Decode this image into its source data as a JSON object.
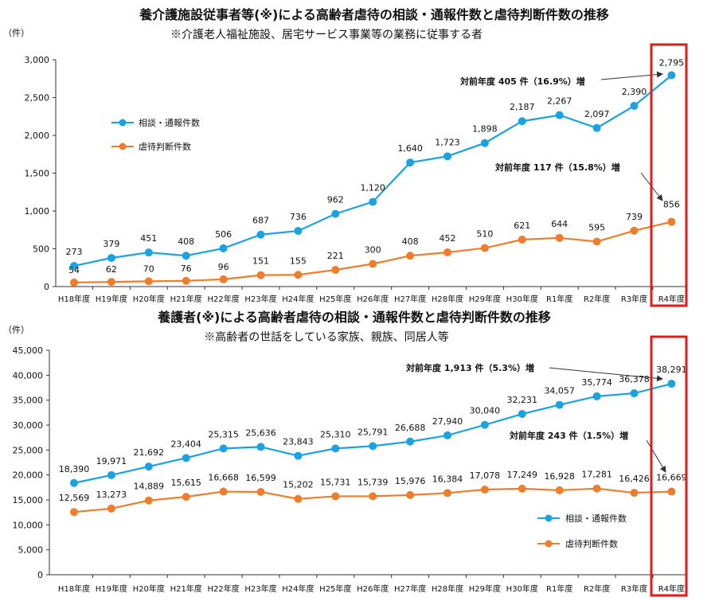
{
  "colors": {
    "consult": "#1aa3e0",
    "abuse": "#ef7d2b",
    "highlight": "#e01b1b",
    "axis": "#333333"
  },
  "chart_data": [
    {
      "type": "line",
      "title": "養介護施設従事者等(※)による高齢者虐待の相談・通報件数と虐待判断件数の推移",
      "subtitle": "※介護老人福祉施設、居宅サービス事業等の業務に従事する者",
      "unit": "（件）",
      "ylim": [
        0,
        3000
      ],
      "yticks": [
        "0",
        "500",
        "1,000",
        "1,500",
        "2,000",
        "2,500",
        "3,000"
      ],
      "ytick_values": [
        0,
        500,
        1000,
        1500,
        2000,
        2500,
        3000
      ],
      "categories": [
        "H18年度",
        "H19年度",
        "H20年度",
        "H21年度",
        "H22年度",
        "H23年度",
        "H24年度",
        "H25年度",
        "H26年度",
        "H27年度",
        "H28年度",
        "H29年度",
        "H30年度",
        "R1年度",
        "R2年度",
        "R3年度",
        "R4年度"
      ],
      "series": [
        {
          "name": "相談・通報件数",
          "values": [
            273,
            379,
            451,
            408,
            506,
            687,
            736,
            962,
            1120,
            1640,
            1723,
            1898,
            2187,
            2267,
            2097,
            2390,
            2795
          ],
          "labels": [
            "273",
            "379",
            "451",
            "408",
            "506",
            "687",
            "736",
            "962",
            "1,120",
            "1,640",
            "1,723",
            "1,898",
            "2,187",
            "2,267",
            "2,097",
            "2,390",
            "2,795"
          ]
        },
        {
          "name": "虐待判断件数",
          "values": [
            54,
            62,
            70,
            76,
            96,
            151,
            155,
            221,
            300,
            408,
            452,
            510,
            621,
            644,
            595,
            739,
            856
          ],
          "labels": [
            "54",
            "62",
            "70",
            "76",
            "96",
            "151",
            "155",
            "221",
            "300",
            "408",
            "452",
            "510",
            "621",
            "644",
            "595",
            "739",
            "856"
          ]
        }
      ],
      "annotations": [
        "対前年度 405 件（16.9%）増",
        "対前年度 117 件（15.8%）増"
      ],
      "legend": "top-left",
      "highlight_category": "R4年度"
    },
    {
      "type": "line",
      "title": "養護者(※)による高齢者虐待の相談・通報件数と虐待判断件数の推移",
      "subtitle": "※高齢者の世話をしている家族、親族、同居人等",
      "unit": "（件）",
      "ylim": [
        0,
        45000
      ],
      "yticks": [
        "0",
        "5,000",
        "10,000",
        "15,000",
        "20,000",
        "25,000",
        "30,000",
        "35,000",
        "40,000",
        "45,000"
      ],
      "ytick_values": [
        0,
        5000,
        10000,
        15000,
        20000,
        25000,
        30000,
        35000,
        40000,
        45000
      ],
      "categories": [
        "H18年度",
        "H19年度",
        "H20年度",
        "H21年度",
        "H22年度",
        "H23年度",
        "H24年度",
        "H25年度",
        "H26年度",
        "H27年度",
        "H28年度",
        "H29年度",
        "H30年度",
        "R1年度",
        "R2年度",
        "R3年度",
        "R4年度"
      ],
      "series": [
        {
          "name": "相談・通報件数",
          "values": [
            18390,
            19971,
            21692,
            23404,
            25315,
            25636,
            23843,
            25310,
            25791,
            26688,
            27940,
            30040,
            32231,
            34057,
            35774,
            36378,
            38291
          ],
          "labels": [
            "18,390",
            "19,971",
            "21,692",
            "23,404",
            "25,315",
            "25,636",
            "23,843",
            "25,310",
            "25,791",
            "26,688",
            "27,940",
            "30,040",
            "32,231",
            "34,057",
            "35,774",
            "36,378",
            "38,291"
          ]
        },
        {
          "name": "虐待判断件数",
          "values": [
            12569,
            13273,
            14889,
            15615,
            16668,
            16599,
            15202,
            15731,
            15739,
            15976,
            16384,
            17078,
            17249,
            16928,
            17281,
            16426,
            16669
          ],
          "labels": [
            "12,569",
            "13,273",
            "14,889",
            "15,615",
            "16,668",
            "16,599",
            "15,202",
            "15,731",
            "15,739",
            "15,976",
            "16,384",
            "17,078",
            "17,249",
            "16,928",
            "17,281",
            "16,426",
            "16,669"
          ]
        }
      ],
      "annotations": [
        "対前年度 1,913 件（5.3%）増",
        "対前年度 243 件（1.5%）増"
      ],
      "legend": "bottom-right",
      "highlight_category": "R4年度"
    }
  ]
}
